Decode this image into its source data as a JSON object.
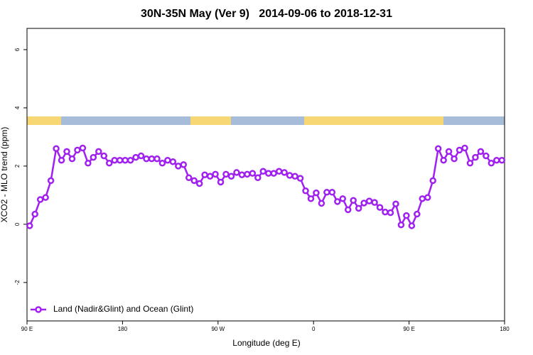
{
  "chart_data": {
    "type": "line",
    "title": "30N-35N May (Ver 9)   2014-09-06 to 2018-12-31",
    "xlabel": "Longitude (deg E)",
    "ylabel": "XCO2 - MLO trend (ppm)",
    "xlim": [
      90,
      540
    ],
    "xticks": [
      {
        "value": 90,
        "label": "90 E"
      },
      {
        "value": 180,
        "label": "180"
      },
      {
        "value": 270,
        "label": "90 W"
      },
      {
        "value": 360,
        "label": "0"
      },
      {
        "value": 450,
        "label": "90 E"
      },
      {
        "value": 540,
        "label": "180"
      }
    ],
    "ylim": [
      -3.32,
      6.73
    ],
    "yticks": [
      -2,
      0,
      2,
      4,
      6
    ],
    "legend": "bottom-left",
    "x": [
      92.5,
      97.5,
      102.5,
      107.5,
      112.5,
      117.5,
      122.5,
      127.5,
      132.5,
      137.5,
      142.5,
      147.5,
      152.5,
      157.5,
      162.5,
      167.5,
      172.5,
      177.5,
      182.5,
      187.5,
      192.5,
      197.5,
      202.5,
      207.5,
      212.5,
      217.5,
      222.5,
      227.5,
      232.5,
      237.5,
      242.5,
      247.5,
      252.5,
      257.5,
      262.5,
      267.5,
      272.5,
      277.5,
      282.5,
      287.5,
      292.5,
      297.5,
      302.5,
      307.5,
      312.5,
      317.5,
      322.5,
      327.5,
      332.5,
      337.5,
      342.5,
      347.5,
      352.5,
      357.5,
      362.5,
      367.5,
      372.5,
      377.5,
      382.5,
      387.5,
      392.5,
      397.5,
      402.5,
      407.5,
      412.5,
      417.5,
      422.5,
      427.5,
      432.5,
      437.5,
      442.5,
      447.5,
      452.5,
      457.5,
      462.5,
      467.5,
      472.5,
      477.5,
      482.5,
      487.5,
      492.5,
      497.5,
      502.5,
      507.5,
      512.5,
      517.5,
      522.5,
      527.5,
      532.5,
      537.5
    ],
    "series": [
      {
        "name": "Land (Nadir&Glint) and Ocean (Glint)",
        "color": "#a020f0",
        "values": [
          -0.05,
          0.35,
          0.85,
          0.92,
          1.5,
          2.6,
          2.2,
          2.5,
          2.25,
          2.55,
          2.62,
          2.1,
          2.3,
          2.5,
          2.35,
          2.1,
          2.2,
          2.2,
          2.2,
          2.2,
          2.3,
          2.35,
          2.25,
          2.25,
          2.25,
          2.1,
          2.2,
          2.15,
          2.0,
          2.05,
          1.6,
          1.5,
          1.4,
          1.7,
          1.65,
          1.72,
          1.45,
          1.72,
          1.65,
          1.78,
          1.7,
          1.72,
          1.75,
          1.6,
          1.82,
          1.75,
          1.75,
          1.82,
          1.78,
          1.68,
          1.65,
          1.58,
          1.15,
          0.88,
          1.08,
          0.72,
          1.1,
          1.1,
          0.78,
          0.88,
          0.5,
          0.82,
          0.55,
          0.73,
          0.8,
          0.75,
          0.58,
          0.42,
          0.4,
          0.7,
          -0.02,
          0.3,
          -0.05,
          0.35,
          0.88,
          0.92,
          1.5,
          2.6,
          2.2,
          2.5,
          2.25,
          2.55,
          2.62,
          2.1,
          2.3,
          2.5,
          2.35,
          2.1,
          2.2,
          2.2
        ]
      }
    ]
  }
}
